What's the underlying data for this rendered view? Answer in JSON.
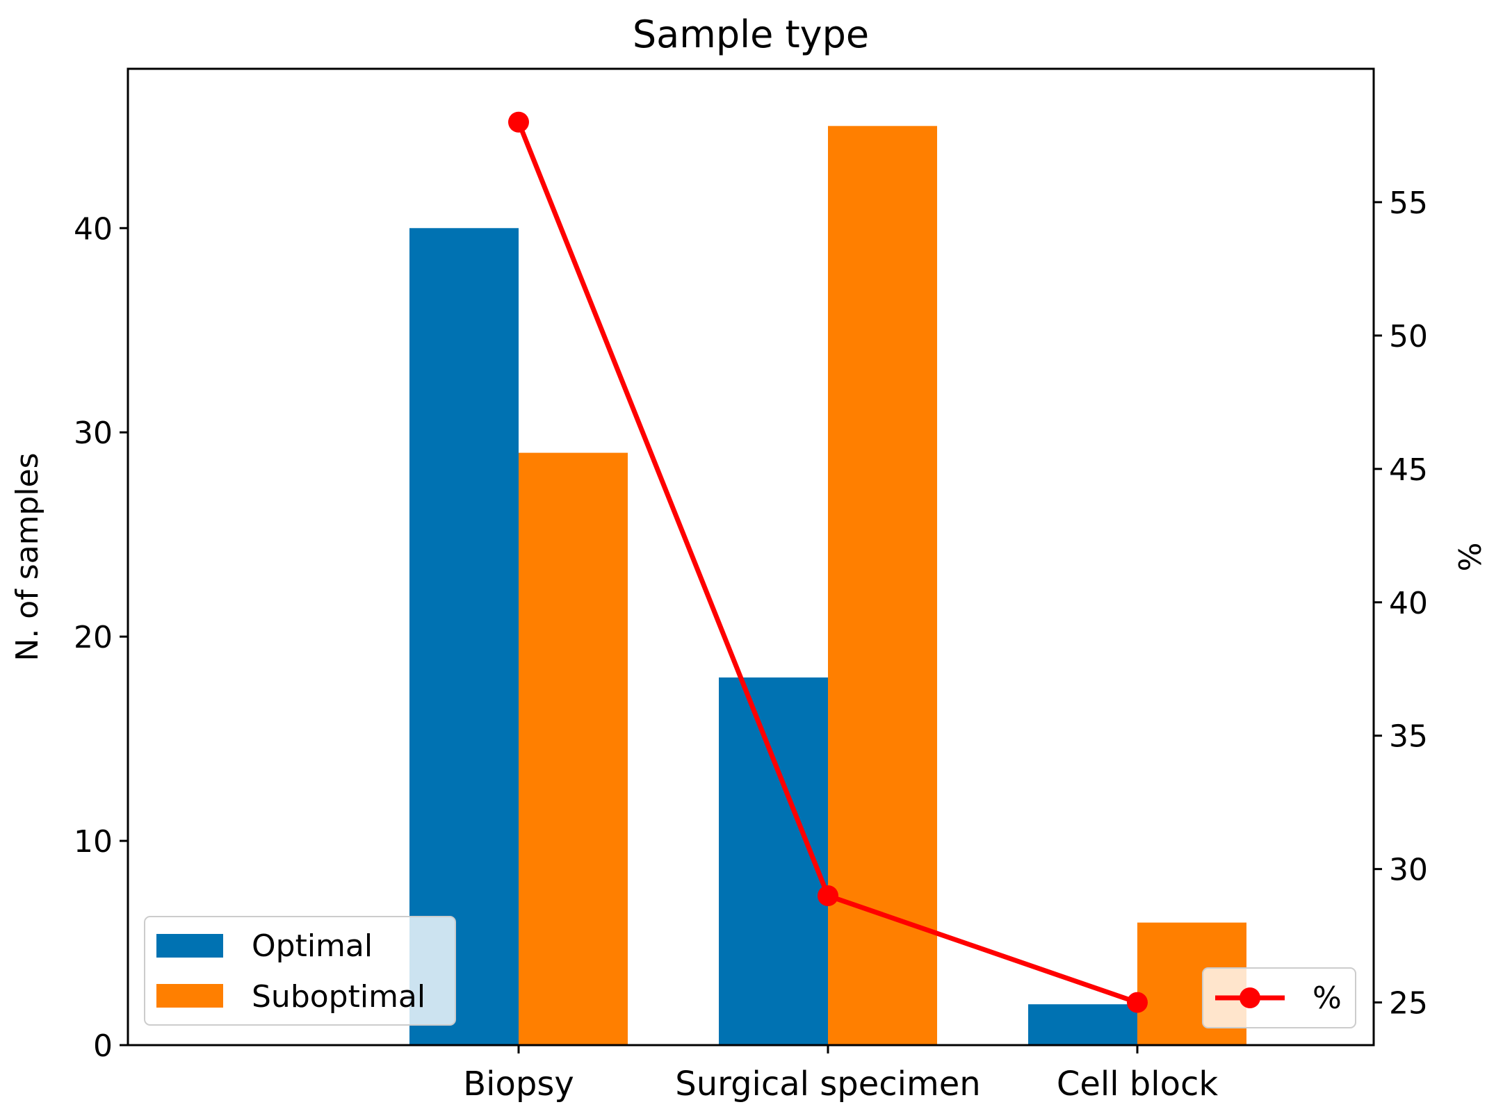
{
  "chart_data": {
    "type": "bar",
    "title": "Sample type",
    "categories": [
      "Biopsy",
      "Surgical specimen",
      "Cell block"
    ],
    "xlabel": "",
    "ylabel": "N. of samples",
    "y2label": "%",
    "ylim": [
      0,
      47.8
    ],
    "y2lim": [
      23.4,
      60.0
    ],
    "yticks": [
      "0",
      "10",
      "20",
      "30",
      "40"
    ],
    "y2ticks": [
      "25",
      "30",
      "35",
      "40",
      "45",
      "50",
      "55"
    ],
    "series": [
      {
        "name": "Optimal",
        "values": [
          40,
          18,
          2
        ],
        "color": "#0072b2"
      },
      {
        "name": "Suboptimal",
        "values": [
          29,
          45,
          6
        ],
        "color": "#ff7f00"
      }
    ],
    "line_series": {
      "name": "%",
      "axis": "right",
      "values": [
        58,
        29,
        25
      ],
      "color": "#ff0000"
    },
    "legend_bars": [
      "Optimal",
      "Suboptimal"
    ],
    "legend_line": "%"
  }
}
